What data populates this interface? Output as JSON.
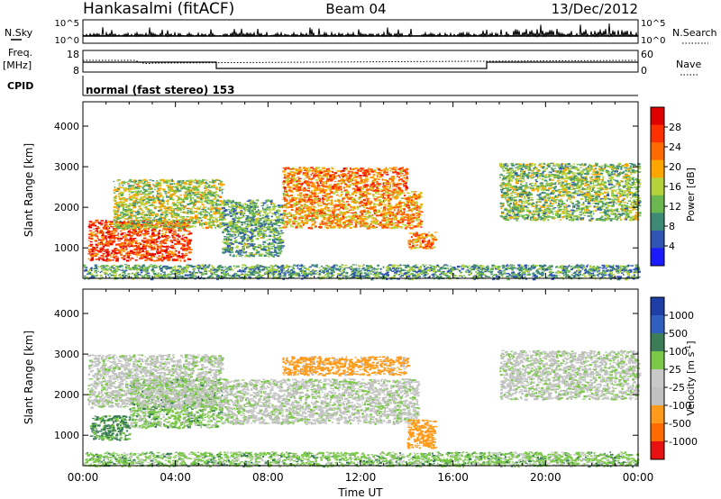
{
  "header": {
    "station": "Hankasalmi (fitACF)",
    "beam": "Beam 04",
    "date": "13/Dec/2012",
    "cpid": "CPID",
    "mode": "normal (fast stereo) 153"
  },
  "strips": {
    "nsky_label": "N.Sky",
    "nsearch_label": "N.Search",
    "top_tick_hi": "10^5",
    "top_tick_lo": "10^0",
    "freq_label": "Freq.",
    "freq_unit": "[MHz]",
    "freq_ticks": [
      "18",
      "8"
    ],
    "nave_label": "Nave",
    "nave_ticks": [
      "60",
      "0"
    ]
  },
  "colors": {
    "power_scale": [
      "#1a1aff",
      "#2f54b3",
      "#3e8a74",
      "#6cb850",
      "#b6d23a",
      "#ffa500",
      "#ff6a00",
      "#ff3000",
      "#e00000"
    ],
    "velocity_scale": [
      "#1f3fa8",
      "#2f5fbf",
      "#3a7d56",
      "#7ac946",
      "#c8c8c8",
      "#c0c0c0",
      "#ff9a1a",
      "#ff6a00",
      "#e81010"
    ]
  },
  "chart_data": [
    {
      "type": "heatmap",
      "name": "power",
      "xlabel": "",
      "ylabel": "Slant Range [km]",
      "xlim": [
        "00:00",
        "24:00"
      ],
      "ylim": [
        250,
        4600
      ],
      "yticks": [
        "1000",
        "2000",
        "3000",
        "4000"
      ],
      "colorbar": {
        "label": "Power [dB]",
        "ticks": [
          "28",
          "24",
          "20",
          "16",
          "12",
          "8",
          "4"
        ]
      },
      "regions": [
        {
          "x": [
            0.2,
            4.6
          ],
          "y": [
            700,
            1700
          ],
          "value": 26
        },
        {
          "x": [
            1.3,
            6.0
          ],
          "y": [
            1500,
            2700
          ],
          "value": 14
        },
        {
          "x": [
            6.0,
            8.6
          ],
          "y": [
            800,
            2200
          ],
          "value": 10
        },
        {
          "x": [
            8.6,
            14.0
          ],
          "y": [
            2400,
            3000
          ],
          "value": 22
        },
        {
          "x": [
            8.6,
            14.6
          ],
          "y": [
            1500,
            2400
          ],
          "value": 20
        },
        {
          "x": [
            14.0,
            15.2
          ],
          "y": [
            1000,
            1400
          ],
          "value": 22
        },
        {
          "x": [
            18.0,
            24.0
          ],
          "y": [
            1700,
            3100
          ],
          "value": 12
        },
        {
          "x": [
            0.0,
            24.0
          ],
          "y": [
            250,
            600
          ],
          "value": 9
        }
      ]
    },
    {
      "type": "heatmap",
      "name": "velocity",
      "xlabel": "Time UT",
      "ylabel": "Slant Range [km]",
      "xlim": [
        "00:00",
        "24:00"
      ],
      "ylim": [
        250,
        4600
      ],
      "xticks": [
        "00:00",
        "04:00",
        "08:00",
        "12:00",
        "16:00",
        "20:00",
        "00:00"
      ],
      "yticks": [
        "1000",
        "2000",
        "3000",
        "4000"
      ],
      "colorbar": {
        "label": "Velocity [m s",
        "label_sup": "-1",
        "label_end": "]",
        "ticks": [
          "1000",
          "500",
          "100",
          "25",
          "-25",
          "-100",
          "-500",
          "-1000"
        ]
      },
      "regions": [
        {
          "x": [
            0.3,
            2.0
          ],
          "y": [
            900,
            1500
          ],
          "value": 120
        },
        {
          "x": [
            2.0,
            6.0
          ],
          "y": [
            1200,
            2400
          ],
          "value": 60
        },
        {
          "x": [
            0.2,
            6.0
          ],
          "y": [
            1700,
            3000
          ],
          "value": -10
        },
        {
          "x": [
            6.0,
            14.5
          ],
          "y": [
            1300,
            2400
          ],
          "value": -5
        },
        {
          "x": [
            8.6,
            14.0
          ],
          "y": [
            2500,
            2950
          ],
          "value": -150
        },
        {
          "x": [
            14.0,
            15.2
          ],
          "y": [
            700,
            1400
          ],
          "value": -250
        },
        {
          "x": [
            18.0,
            24.0
          ],
          "y": [
            1900,
            3100
          ],
          "value": -5
        },
        {
          "x": [
            0.0,
            24.0
          ],
          "y": [
            250,
            600
          ],
          "value": 60
        }
      ]
    }
  ]
}
